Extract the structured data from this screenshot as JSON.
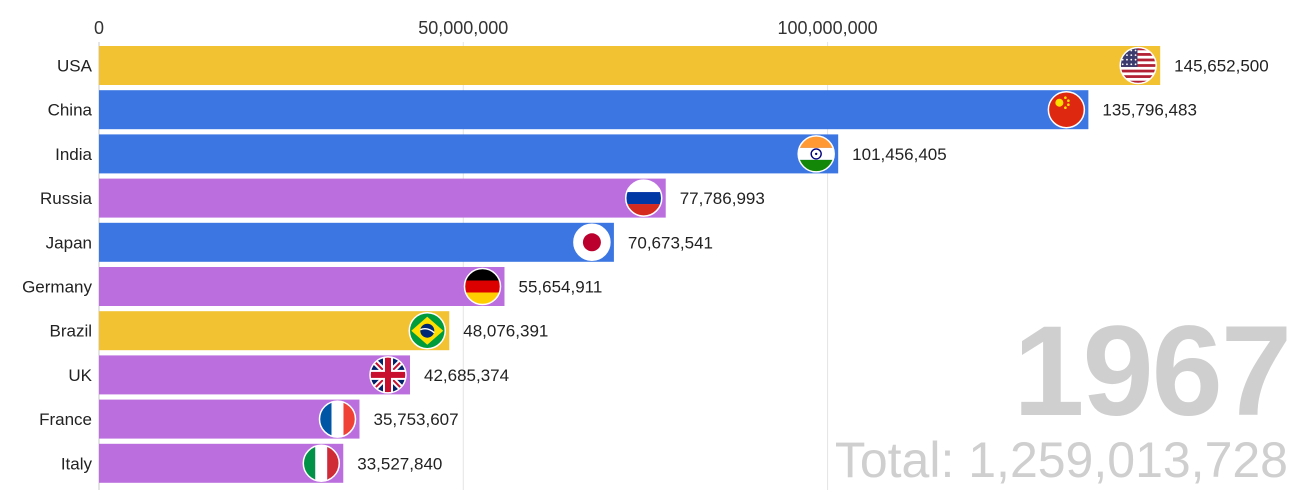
{
  "chart_data": {
    "type": "bar",
    "orientation": "horizontal",
    "year": "1967",
    "total_text": "Total: 1,259,013,728",
    "axis": {
      "min": 0,
      "max": 147000000,
      "ticks": [
        0,
        50000000,
        100000000
      ],
      "tick_labels": [
        "0",
        "50,000,000",
        "100,000,000"
      ],
      "position": "top",
      "grid": true
    },
    "categories": [
      "USA",
      "China",
      "India",
      "Russia",
      "Japan",
      "Germany",
      "Brazil",
      "UK",
      "France",
      "Italy"
    ],
    "values": [
      145652500,
      135796483,
      101456405,
      77786993,
      70673541,
      55654911,
      48076391,
      42685374,
      35753607,
      33527840
    ],
    "value_labels": [
      "145,652,500",
      "135,796,483",
      "101,456,405",
      "77,786,993",
      "70,673,541",
      "55,654,911",
      "48,076,391",
      "42,685,374",
      "35,753,607",
      "33,527,840"
    ],
    "colors": [
      "#F2C233",
      "#3B76E2",
      "#3B76E2",
      "#BB6FDE",
      "#3B76E2",
      "#BB6FDE",
      "#F2C233",
      "#BB6FDE",
      "#BB6FDE",
      "#BB6FDE"
    ],
    "flag_icons": [
      "usa-flag-icon",
      "china-flag-icon",
      "india-flag-icon",
      "russia-flag-icon",
      "japan-flag-icon",
      "germany-flag-icon",
      "brazil-flag-icon",
      "uk-flag-icon",
      "france-flag-icon",
      "italy-flag-icon"
    ]
  }
}
